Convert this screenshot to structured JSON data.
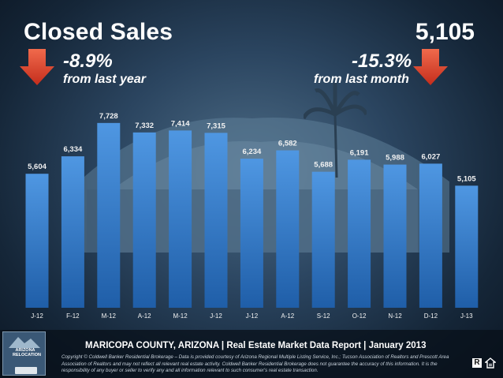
{
  "header": {
    "title": "Closed Sales",
    "total": "5,105"
  },
  "changes": {
    "year_pct": "-8.9%",
    "year_label": "from last year",
    "month_pct": "-15.3%",
    "month_label": "from last month"
  },
  "colors": {
    "bar_top": "#4f97e2",
    "bar_bottom": "#1f5ea8",
    "arrow": "#e0412c"
  },
  "chart_data": {
    "type": "bar",
    "categories": [
      "J-12",
      "F-12",
      "M-12",
      "A-12",
      "M-12",
      "J-12",
      "J-12",
      "A-12",
      "S-12",
      "O-12",
      "N-12",
      "D-12",
      "J-13"
    ],
    "values": [
      5604,
      6334,
      7728,
      7332,
      7414,
      7315,
      6234,
      6582,
      5688,
      6191,
      5988,
      6027,
      5105
    ],
    "value_labels": [
      "5,604",
      "6,334",
      "7,728",
      "7,332",
      "7,414",
      "7,315",
      "6,234",
      "6,582",
      "5,688",
      "6,191",
      "5,988",
      "6,027",
      "5,105"
    ],
    "title": "Closed Sales",
    "ylim": [
      0,
      8000
    ],
    "grid": false
  },
  "footer": {
    "title": "MARICOPA COUNTY, ARIZONA   |   Real Estate Market Data Report  |  January 2013",
    "copyright": "Copyright © Coldwell Banker Residential Brokerage – Data is provided courtesy of Arizona Regional Multiple Listing Service, Inc.; Tucson Association of Realtors and Prescott Area Association of Realtors and may not reflect all relevant real estate activity. Coldwell Banker Residential Brokerage does not guarantee the accuracy of this information. It is the responsibility of any buyer or seller to verify any and all information relevant to such consumer's real estate transaction.",
    "logo_text": "ARIZONA RELOCATION",
    "r_icon": "R"
  }
}
